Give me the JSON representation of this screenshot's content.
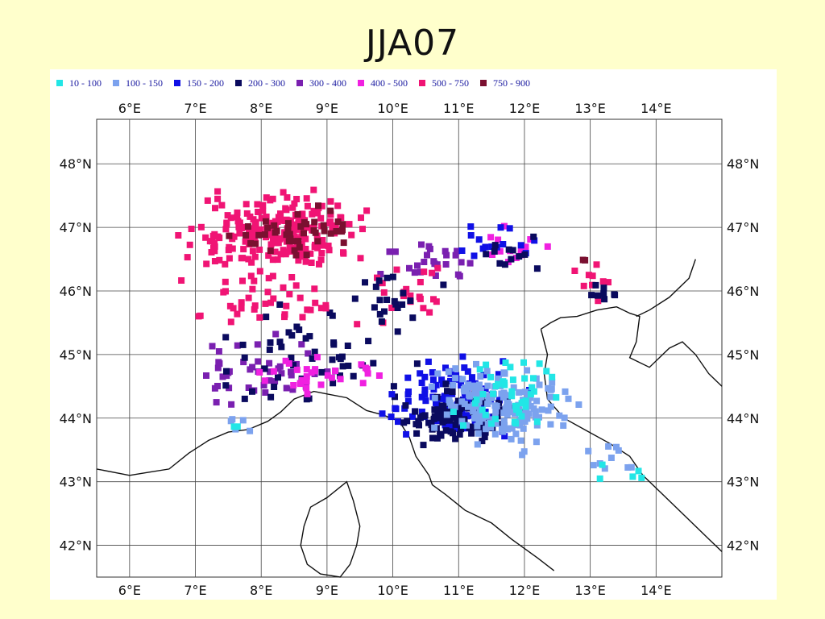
{
  "title": "JJA07",
  "legend": [
    {
      "label": "10 - 100",
      "color": "#22e6e6"
    },
    {
      "label": "100 - 150",
      "color": "#7ca2ee"
    },
    {
      "label": "150 - 200",
      "color": "#1010e6"
    },
    {
      "label": "200 - 300",
      "color": "#0a0a5e"
    },
    {
      "label": "300 - 400",
      "color": "#7a20b0"
    },
    {
      "label": "400 - 500",
      "color": "#f020e0"
    },
    {
      "label": "500 - 750",
      "color": "#f01474"
    },
    {
      "label": "750 - 900",
      "color": "#7a1030"
    }
  ],
  "lon_ticks": [
    "6°E",
    "7°E",
    "8°E",
    "9°E",
    "10°E",
    "11°E",
    "12°E",
    "13°E",
    "14°E"
  ],
  "lat_ticks": [
    "48°N",
    "47°N",
    "46°N",
    "45°N",
    "44°N",
    "43°N",
    "42°N"
  ],
  "map": {
    "lon_range": [
      5.5,
      15.0
    ],
    "lat_range": [
      41.5,
      48.7
    ],
    "gridlines": true,
    "coastline": [
      [
        5.5,
        43.2
      ],
      [
        6.0,
        43.1
      ],
      [
        6.3,
        43.15
      ],
      [
        6.6,
        43.2
      ],
      [
        6.9,
        43.45
      ],
      [
        7.2,
        43.65
      ],
      [
        7.5,
        43.78
      ],
      [
        7.8,
        43.82
      ],
      [
        8.1,
        43.95
      ],
      [
        8.3,
        44.1
      ],
      [
        8.5,
        44.3
      ],
      [
        8.8,
        44.42
      ],
      [
        9.0,
        44.38
      ],
      [
        9.3,
        44.32
      ],
      [
        9.6,
        44.12
      ],
      [
        9.85,
        44.05
      ],
      [
        10.1,
        43.95
      ],
      [
        10.25,
        43.7
      ],
      [
        10.35,
        43.4
      ],
      [
        10.55,
        43.1
      ],
      [
        10.6,
        42.95
      ],
      [
        10.8,
        42.8
      ],
      [
        11.1,
        42.55
      ],
      [
        11.5,
        42.35
      ],
      [
        11.8,
        42.1
      ],
      [
        12.2,
        41.8
      ],
      [
        12.45,
        41.6
      ]
    ],
    "east_coast": [
      [
        12.25,
        45.4
      ],
      [
        12.4,
        45.5
      ],
      [
        12.55,
        45.58
      ],
      [
        12.8,
        45.6
      ],
      [
        13.1,
        45.7
      ],
      [
        13.4,
        45.75
      ],
      [
        13.6,
        45.65
      ],
      [
        13.75,
        45.6
      ],
      [
        13.7,
        45.2
      ],
      [
        13.6,
        44.95
      ],
      [
        13.9,
        44.8
      ],
      [
        14.2,
        45.1
      ],
      [
        14.4,
        45.2
      ],
      [
        14.6,
        45.0
      ],
      [
        14.8,
        44.7
      ],
      [
        15.0,
        44.5
      ]
    ],
    "adriatic_coast": [
      [
        12.25,
        45.4
      ],
      [
        12.35,
        45.0
      ],
      [
        12.3,
        44.7
      ],
      [
        12.35,
        44.3
      ],
      [
        12.6,
        44.0
      ],
      [
        12.95,
        43.8
      ],
      [
        13.3,
        43.6
      ],
      [
        13.6,
        43.4
      ],
      [
        13.8,
        43.1
      ],
      [
        14.1,
        42.8
      ],
      [
        14.5,
        42.4
      ],
      [
        14.8,
        42.1
      ],
      [
        15.0,
        41.9
      ]
    ],
    "corsica": [
      [
        9.3,
        43.0
      ],
      [
        9.4,
        42.7
      ],
      [
        9.5,
        42.3
      ],
      [
        9.45,
        42.0
      ],
      [
        9.35,
        41.7
      ],
      [
        9.2,
        41.5
      ],
      [
        8.9,
        41.55
      ],
      [
        8.7,
        41.7
      ],
      [
        8.6,
        42.0
      ],
      [
        8.65,
        42.3
      ],
      [
        8.75,
        42.6
      ],
      [
        9.0,
        42.75
      ],
      [
        9.3,
        43.0
      ]
    ],
    "border": [
      [
        13.7,
        45.6
      ],
      [
        13.9,
        45.7
      ],
      [
        14.2,
        45.9
      ],
      [
        14.5,
        46.2
      ],
      [
        14.6,
        46.5
      ]
    ]
  },
  "chart_data": {
    "type": "scatter",
    "title": "JJA07",
    "legend_placement": "top",
    "clusters": [
      {
        "class": 6,
        "lon": 8.2,
        "lat": 46.9,
        "slon": 1.0,
        "slat": 0.5,
        "n": 230
      },
      {
        "class": 7,
        "lon": 8.6,
        "lat": 46.9,
        "slon": 0.8,
        "slat": 0.3,
        "n": 45
      },
      {
        "class": 4,
        "lon": 7.8,
        "lat": 44.7,
        "slon": 0.9,
        "slat": 0.45,
        "n": 45
      },
      {
        "class": 3,
        "lon": 8.8,
        "lat": 45.0,
        "slon": 1.2,
        "slat": 0.6,
        "n": 55
      },
      {
        "class": 5,
        "lon": 8.8,
        "lat": 44.6,
        "slon": 0.9,
        "slat": 0.25,
        "n": 30
      },
      {
        "class": 6,
        "lon": 8.3,
        "lat": 45.8,
        "slon": 1.0,
        "slat": 0.4,
        "n": 40
      },
      {
        "class": 4,
        "lon": 10.6,
        "lat": 46.5,
        "slon": 0.6,
        "slat": 0.35,
        "n": 25
      },
      {
        "class": 6,
        "lon": 10.3,
        "lat": 46.0,
        "slon": 0.5,
        "slat": 0.3,
        "n": 20
      },
      {
        "class": 3,
        "lon": 10.0,
        "lat": 45.9,
        "slon": 0.7,
        "slat": 0.4,
        "n": 20
      },
      {
        "class": 2,
        "lon": 10.9,
        "lat": 44.3,
        "slon": 0.8,
        "slat": 0.45,
        "n": 130
      },
      {
        "class": 3,
        "lon": 11.0,
        "lat": 44.0,
        "slon": 0.7,
        "slat": 0.35,
        "n": 110
      },
      {
        "class": 1,
        "lon": 11.6,
        "lat": 44.2,
        "slon": 0.8,
        "slat": 0.5,
        "n": 160
      },
      {
        "class": 0,
        "lon": 11.8,
        "lat": 44.4,
        "slon": 0.6,
        "slat": 0.45,
        "n": 45
      },
      {
        "class": 1,
        "lon": 13.3,
        "lat": 43.3,
        "slon": 0.4,
        "slat": 0.3,
        "n": 10
      },
      {
        "class": 0,
        "lon": 13.5,
        "lat": 43.2,
        "slon": 0.4,
        "slat": 0.25,
        "n": 5
      },
      {
        "class": 5,
        "lon": 11.8,
        "lat": 46.7,
        "slon": 0.5,
        "slat": 0.25,
        "n": 15
      },
      {
        "class": 2,
        "lon": 11.6,
        "lat": 46.7,
        "slon": 0.5,
        "slat": 0.3,
        "n": 15
      },
      {
        "class": 3,
        "lon": 11.8,
        "lat": 46.6,
        "slon": 0.4,
        "slat": 0.3,
        "n": 12
      },
      {
        "class": 6,
        "lon": 13.1,
        "lat": 46.1,
        "slon": 0.4,
        "slat": 0.3,
        "n": 10
      },
      {
        "class": 3,
        "lon": 13.3,
        "lat": 45.9,
        "slon": 0.3,
        "slat": 0.15,
        "n": 8
      },
      {
        "class": 7,
        "lon": 12.9,
        "lat": 46.5,
        "slon": 0.1,
        "slat": 0.05,
        "n": 2
      },
      {
        "class": 1,
        "lon": 7.7,
        "lat": 43.9,
        "slon": 0.2,
        "slat": 0.1,
        "n": 5
      },
      {
        "class": 0,
        "lon": 7.6,
        "lat": 43.9,
        "slon": 0.1,
        "slat": 0.05,
        "n": 2
      }
    ]
  }
}
